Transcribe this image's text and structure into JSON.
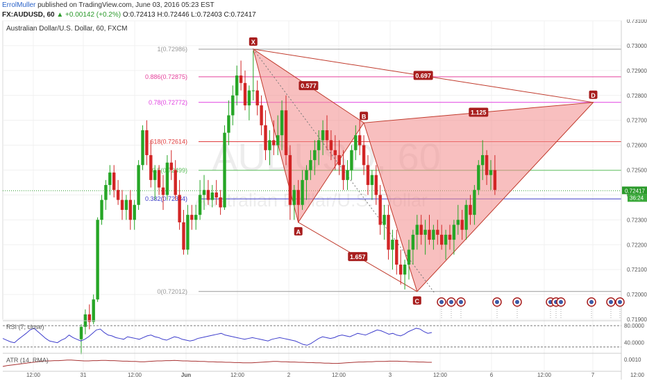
{
  "header": {
    "author": "ErrolMuller",
    "published": " published on TradingView.com, June 03, 2016 05:23 EST",
    "symbol": "FX:AUDUSD, 60",
    "change": "▲ +0.00142 (+0.2%)",
    "ohlc": " O:0.72413 H:0.72446 L:0.72403 C:0.72417"
  },
  "chart_title": "Australian Dollar/U.S. Dollar, 60, FXCM",
  "watermark": {
    "symbol": "AUDUSD, 60",
    "name": "Australian Dollar/U.S. Dollar"
  },
  "colors": {
    "up": "#26a626",
    "down": "#d22525",
    "pattern_fill": "#f28a8a",
    "pattern_line": "#c0392b",
    "rsi": "#3c3ccc",
    "atr": "#a83232",
    "current_price": "#2b9a2b"
  },
  "price_axis": [
    "0.73100",
    "0.73000",
    "0.72900",
    "0.72800",
    "0.72700",
    "0.72600",
    "0.72500",
    "0.72400",
    "0.72300",
    "0.72200",
    "0.72100",
    "0.72000",
    "0.71900"
  ],
  "price_tag": "0.72417",
  "price_tag2": "36:24",
  "rsi_axis": [
    "80.0000",
    "40.0000"
  ],
  "atr_axis": [
    "0.0010"
  ],
  "time_axis": [
    "12:00",
    "31",
    "12:00",
    "Jun",
    "12:00",
    "2",
    "12:00",
    "3",
    "12:00",
    "6",
    "12:00",
    "7",
    "12:00"
  ],
  "rsi_label": "RSI (7, close)",
  "atr_label": "ATR (14, RMA)",
  "fib_levels": [
    {
      "label": "1(0.72986)",
      "price": 0.72986,
      "color": "#999999"
    },
    {
      "label": "0.886(0.72875)",
      "price": 0.72875,
      "color": "#e5409b"
    },
    {
      "label": "0.78(0.72772)",
      "price": 0.72772,
      "color": "#e040e0"
    },
    {
      "label": "0.618(0.72614)",
      "price": 0.72614,
      "color": "#e03c3c"
    },
    {
      "label": "0.5(0.72499)",
      "price": 0.72499,
      "color": "#5cbf5c"
    },
    {
      "label": "0.382(0.72384)",
      "price": 0.72384,
      "color": "#3c3cc8"
    },
    {
      "label": "0(0.72012)",
      "price": 0.72012,
      "color": "#999999"
    }
  ],
  "pattern_points": [
    {
      "label": "X",
      "bar": 42,
      "price": 0.72986
    },
    {
      "label": "A",
      "bar": 53,
      "price": 0.7229
    },
    {
      "label": "B",
      "bar": 69,
      "price": 0.7269
    },
    {
      "label": "C",
      "bar": 82,
      "price": 0.72012
    },
    {
      "label": "D",
      "bar": 125,
      "price": 0.72772
    }
  ],
  "ratio_labels": [
    "0.577",
    "0.697",
    "1.125",
    "1.657"
  ],
  "chart_data": {
    "type": "candlestick",
    "title": "Australian Dollar/U.S. Dollar, 60, FXCM",
    "ylim": [
      0.719,
      0.731
    ],
    "y_ticks": [
      0.719,
      0.72,
      0.721,
      0.722,
      0.723,
      0.724,
      0.725,
      0.726,
      0.727,
      0.728,
      0.729,
      0.73,
      0.731
    ],
    "candles": [
      [
        0.7182,
        0.7188,
        0.7176,
        0.7187
      ],
      [
        0.7187,
        0.7194,
        0.7184,
        0.7192
      ],
      [
        0.7192,
        0.7196,
        0.7186,
        0.7189
      ],
      [
        0.7189,
        0.72,
        0.7188,
        0.7198
      ],
      [
        0.7198,
        0.7231,
        0.7197,
        0.723
      ],
      [
        0.723,
        0.724,
        0.7228,
        0.7238
      ],
      [
        0.7238,
        0.7246,
        0.7234,
        0.7244
      ],
      [
        0.7244,
        0.7252,
        0.724,
        0.7249
      ],
      [
        0.7249,
        0.7252,
        0.7239,
        0.7242
      ],
      [
        0.7242,
        0.7246,
        0.7236,
        0.7238
      ],
      [
        0.7238,
        0.7242,
        0.723,
        0.7234
      ],
      [
        0.7234,
        0.724,
        0.723,
        0.7238
      ],
      [
        0.7238,
        0.7242,
        0.7226,
        0.723
      ],
      [
        0.723,
        0.7238,
        0.7226,
        0.7236
      ],
      [
        0.7236,
        0.7254,
        0.7234,
        0.7252
      ],
      [
        0.7252,
        0.7268,
        0.725,
        0.7266
      ],
      [
        0.7266,
        0.727,
        0.7252,
        0.7256
      ],
      [
        0.7256,
        0.7262,
        0.7243,
        0.7246
      ],
      [
        0.7246,
        0.7252,
        0.7238,
        0.725
      ],
      [
        0.725,
        0.7252,
        0.724,
        0.7243
      ],
      [
        0.7243,
        0.7248,
        0.7234,
        0.724
      ],
      [
        0.724,
        0.7256,
        0.7238,
        0.7253
      ],
      [
        0.7253,
        0.7258,
        0.7246,
        0.725
      ],
      [
        0.725,
        0.7254,
        0.7238,
        0.724
      ],
      [
        0.724,
        0.7246,
        0.7226,
        0.7229
      ],
      [
        0.7229,
        0.7234,
        0.7216,
        0.7218
      ],
      [
        0.7218,
        0.7236,
        0.7216,
        0.7232
      ],
      [
        0.7232,
        0.7236,
        0.7226,
        0.723
      ],
      [
        0.723,
        0.7236,
        0.7226,
        0.7232
      ],
      [
        0.7232,
        0.7246,
        0.723,
        0.724
      ],
      [
        0.724,
        0.7248,
        0.7234,
        0.7242
      ],
      [
        0.7242,
        0.7246,
        0.7236,
        0.7238
      ],
      [
        0.7238,
        0.7244,
        0.7235,
        0.7241
      ],
      [
        0.7241,
        0.7246,
        0.7236,
        0.7239
      ],
      [
        0.7239,
        0.7242,
        0.7232,
        0.7235
      ],
      [
        0.7235,
        0.7268,
        0.7234,
        0.7265
      ],
      [
        0.7265,
        0.7278,
        0.726,
        0.7272
      ],
      [
        0.7272,
        0.7284,
        0.7268,
        0.728
      ],
      [
        0.728,
        0.7292,
        0.7276,
        0.7288
      ],
      [
        0.7288,
        0.7294,
        0.7282,
        0.7285
      ],
      [
        0.7285,
        0.729,
        0.7274,
        0.7276
      ],
      [
        0.7276,
        0.7284,
        0.727,
        0.7282
      ],
      [
        0.7282,
        0.7298,
        0.7278,
        0.7282
      ],
      [
        0.7282,
        0.7286,
        0.7272,
        0.7276
      ],
      [
        0.7276,
        0.728,
        0.7264,
        0.7268
      ],
      [
        0.7268,
        0.7274,
        0.7254,
        0.7258
      ],
      [
        0.7258,
        0.7266,
        0.7252,
        0.7262
      ],
      [
        0.7262,
        0.727,
        0.7256,
        0.726
      ],
      [
        0.726,
        0.7272,
        0.7256,
        0.7264
      ],
      [
        0.7264,
        0.7278,
        0.7258,
        0.7274
      ],
      [
        0.7274,
        0.728,
        0.7252,
        0.7256
      ],
      [
        0.7256,
        0.726,
        0.723,
        0.7236
      ],
      [
        0.7236,
        0.7244,
        0.723,
        0.7242
      ],
      [
        0.7242,
        0.7246,
        0.7229,
        0.7236
      ],
      [
        0.7236,
        0.725,
        0.7234,
        0.7246
      ],
      [
        0.7246,
        0.7252,
        0.7238,
        0.725
      ],
      [
        0.725,
        0.7258,
        0.7246,
        0.7254
      ],
      [
        0.7254,
        0.7262,
        0.7248,
        0.7258
      ],
      [
        0.7258,
        0.7266,
        0.7252,
        0.7262
      ],
      [
        0.7262,
        0.727,
        0.7256,
        0.7266
      ],
      [
        0.7266,
        0.7272,
        0.7258,
        0.7262
      ],
      [
        0.7262,
        0.7266,
        0.7254,
        0.7258
      ],
      [
        0.7258,
        0.7264,
        0.725,
        0.7256
      ],
      [
        0.7256,
        0.7262,
        0.7248,
        0.7252
      ],
      [
        0.7252,
        0.7258,
        0.7242,
        0.7246
      ],
      [
        0.7246,
        0.7254,
        0.7242,
        0.725
      ],
      [
        0.725,
        0.726,
        0.7246,
        0.7258
      ],
      [
        0.7258,
        0.7268,
        0.7254,
        0.7264
      ],
      [
        0.7264,
        0.727,
        0.7256,
        0.726
      ],
      [
        0.726,
        0.7264,
        0.7248,
        0.7252
      ],
      [
        0.7252,
        0.7256,
        0.724,
        0.7244
      ],
      [
        0.7244,
        0.725,
        0.7238,
        0.7248
      ],
      [
        0.7248,
        0.7252,
        0.7236,
        0.724
      ],
      [
        0.724,
        0.7244,
        0.7224,
        0.7228
      ],
      [
        0.7228,
        0.7236,
        0.7222,
        0.7232
      ],
      [
        0.7232,
        0.7236,
        0.7214,
        0.7218
      ],
      [
        0.7218,
        0.7226,
        0.721,
        0.7222
      ],
      [
        0.7222,
        0.7226,
        0.7208,
        0.7212
      ],
      [
        0.7212,
        0.7218,
        0.7204,
        0.7208
      ],
      [
        0.7208,
        0.7214,
        0.7202,
        0.7212
      ],
      [
        0.7212,
        0.7222,
        0.7206,
        0.7218
      ],
      [
        0.7218,
        0.7226,
        0.7212,
        0.7224
      ],
      [
        0.7224,
        0.7232,
        0.7218,
        0.7228
      ],
      [
        0.7228,
        0.7232,
        0.722,
        0.7224
      ],
      [
        0.7224,
        0.723,
        0.7216,
        0.7226
      ],
      [
        0.7226,
        0.7232,
        0.722,
        0.7222
      ],
      [
        0.7222,
        0.7228,
        0.7218,
        0.7226
      ],
      [
        0.7226,
        0.723,
        0.722,
        0.7224
      ],
      [
        0.7224,
        0.7228,
        0.7218,
        0.722
      ],
      [
        0.722,
        0.7226,
        0.7214,
        0.7224
      ],
      [
        0.7224,
        0.7228,
        0.7218,
        0.7222
      ],
      [
        0.7222,
        0.723,
        0.7216,
        0.7228
      ],
      [
        0.7228,
        0.7236,
        0.7224,
        0.723
      ],
      [
        0.723,
        0.7234,
        0.7222,
        0.7226
      ],
      [
        0.7226,
        0.7238,
        0.7222,
        0.7236
      ],
      [
        0.7236,
        0.724,
        0.7228,
        0.7232
      ],
      [
        0.7232,
        0.7244,
        0.7228,
        0.7242
      ],
      [
        0.7242,
        0.7254,
        0.724,
        0.7252
      ],
      [
        0.7252,
        0.7262,
        0.7246,
        0.7256
      ],
      [
        0.7256,
        0.7258,
        0.7244,
        0.7248
      ],
      [
        0.7248,
        0.7254,
        0.7242,
        0.725
      ],
      [
        0.725,
        0.7256,
        0.724,
        0.7242
      ]
    ],
    "rsi": [
      50,
      46,
      42,
      40,
      48,
      55,
      62,
      70,
      74,
      66,
      58,
      50,
      44,
      42,
      40,
      46,
      50,
      58,
      52,
      48,
      44,
      48,
      54,
      62,
      70,
      72,
      64,
      58,
      56,
      52,
      50,
      48,
      54,
      52,
      50,
      48,
      52,
      56,
      58,
      54,
      52,
      48,
      46,
      50,
      54,
      52,
      48,
      46,
      44,
      46,
      50,
      52,
      54,
      56,
      58,
      60,
      62,
      58,
      56,
      54,
      52,
      50,
      48,
      50,
      52,
      50,
      48,
      46,
      44,
      48,
      50,
      52,
      50,
      48,
      46,
      44,
      40,
      36,
      34,
      38,
      44,
      50,
      54,
      52,
      50,
      52,
      56,
      58,
      56,
      54,
      58,
      62,
      60,
      58,
      62,
      66,
      70,
      68,
      64,
      60,
      62,
      58,
      56,
      60,
      66,
      70,
      74,
      72,
      66,
      62,
      64
    ],
    "atr": [
      0.00075,
      0.00078,
      0.0008,
      0.00082,
      0.00084,
      0.00086,
      0.00088,
      0.0009,
      0.00092,
      0.00094,
      0.00095,
      0.00095,
      0.00096,
      0.00096,
      0.00097,
      0.00098,
      0.00098,
      0.00097,
      0.00096,
      0.00095,
      0.00095,
      0.00096,
      0.00096,
      0.00097,
      0.00097,
      0.00096,
      0.00096,
      0.00095,
      0.00094,
      0.00094,
      0.00093,
      0.00093,
      0.00092,
      0.00092,
      0.00093,
      0.00094,
      0.00095,
      0.00095,
      0.00096,
      0.00096,
      0.00097,
      0.00096,
      0.00095,
      0.00095,
      0.00094,
      0.00094,
      0.00093,
      0.00093,
      0.00092,
      0.00092,
      0.00091,
      0.00091,
      0.0009,
      0.0009,
      0.00089,
      0.00089,
      0.00088,
      0.00088,
      0.00088,
      0.00089,
      0.0009,
      0.00091,
      0.00092,
      0.00093,
      0.00093,
      0.00092,
      0.00092,
      0.00091,
      0.00091,
      0.0009,
      0.0009,
      0.00089,
      0.00089,
      0.00088,
      0.00088,
      0.00087,
      0.00087,
      0.00086,
      0.00086,
      0.00087,
      0.00088,
      0.00089,
      0.0009,
      0.00091,
      0.00091,
      0.00092,
      0.00092,
      0.00093,
      0.00093,
      0.00093,
      0.00094,
      0.00094,
      0.00094,
      0.00093,
      0.00093,
      0.00092,
      0.00092,
      0.00091,
      0.00091,
      0.0009,
      0.0009
    ]
  }
}
